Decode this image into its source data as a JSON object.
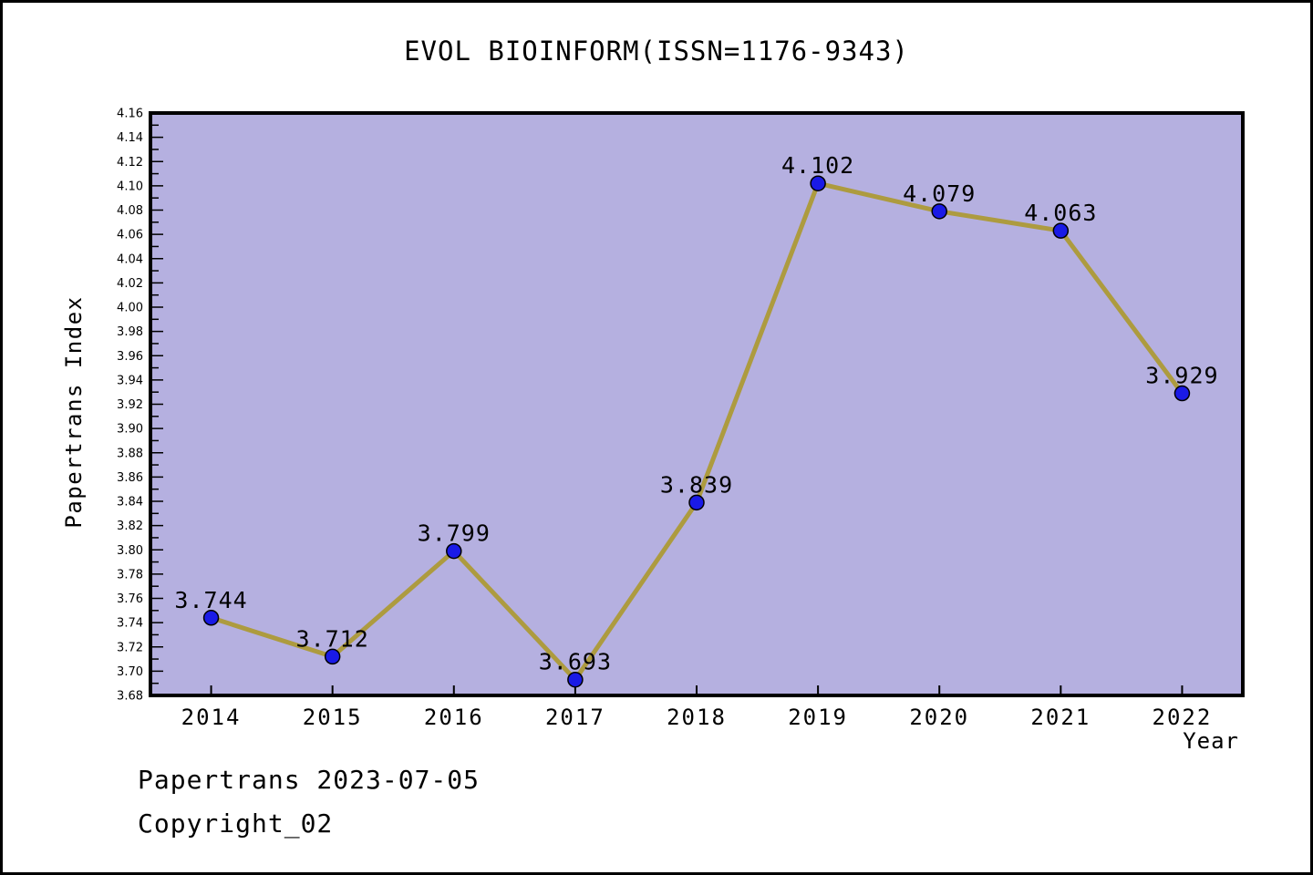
{
  "title": "EVOL BIOINFORM(ISSN=1176-9343)",
  "footer": {
    "line1": "Papertrans 2023-07-05",
    "line2": "Copyright_02"
  },
  "chart_data": {
    "type": "line",
    "title": "EVOL BIOINFORM(ISSN=1176-9343)",
    "xlabel": "Year",
    "ylabel": "Papertrans Index",
    "categories": [
      2014,
      2015,
      2016,
      2017,
      2018,
      2019,
      2020,
      2021,
      2022
    ],
    "values": [
      3.744,
      3.712,
      3.799,
      3.693,
      3.839,
      4.102,
      4.079,
      4.063,
      3.929
    ],
    "point_labels": [
      "3.744",
      "3.712",
      "3.799",
      "3.693",
      "3.839",
      "4.102",
      "4.079",
      "4.063",
      "3.929"
    ],
    "xlim": [
      2013.5,
      2022.5
    ],
    "ylim": [
      3.68,
      4.16
    ],
    "y_major_step": 0.02,
    "y_minor_step": 0.01,
    "grid": false,
    "legend": "none",
    "colors": {
      "plot_background": "#b5b0e0",
      "line": "#ad9b3f",
      "marker_fill": "#1a1ae6",
      "marker_edge": "#000000",
      "axis": "#000000",
      "text": "#000000"
    }
  }
}
